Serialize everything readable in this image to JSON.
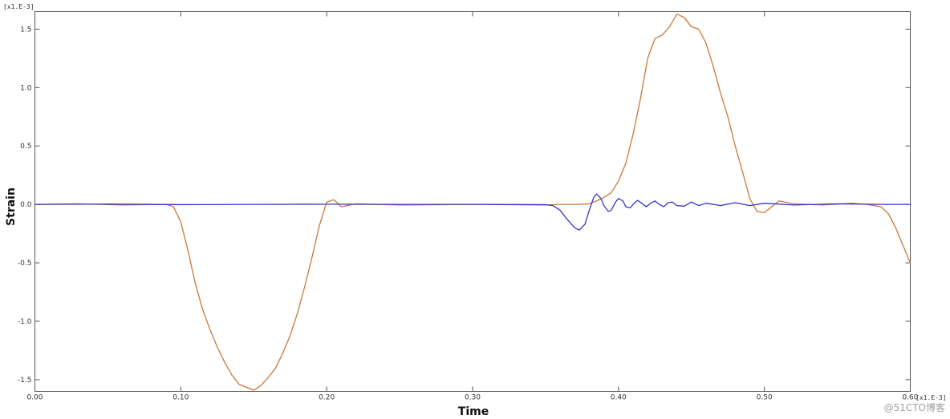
{
  "chart_data": {
    "type": "line",
    "xlabel": "Time",
    "ylabel": "Strain",
    "x_multiplier": "[x1.E-3]",
    "y_multiplier": "[x1.E-3]",
    "xlim": [
      0.0,
      0.6
    ],
    "ylim": [
      -1.6,
      1.65
    ],
    "x_ticks": [
      "0.00",
      "0.10",
      "0.20",
      "0.30",
      "0.40",
      "0.50",
      "0.60"
    ],
    "y_ticks": [
      "-1.5",
      "-1.0",
      "-0.5",
      "0.0",
      "0.5",
      "1.0",
      "1.5"
    ],
    "grid": false,
    "legend": "none",
    "series": [
      {
        "color": "#c8783a",
        "points": [
          [
            0.0,
            0.0
          ],
          [
            0.03,
            0.005
          ],
          [
            0.06,
            -0.005
          ],
          [
            0.09,
            0.0
          ],
          [
            0.095,
            -0.02
          ],
          [
            0.1,
            -0.15
          ],
          [
            0.105,
            -0.4
          ],
          [
            0.11,
            -0.68
          ],
          [
            0.115,
            -0.9
          ],
          [
            0.12,
            -1.07
          ],
          [
            0.125,
            -1.22
          ],
          [
            0.13,
            -1.35
          ],
          [
            0.135,
            -1.46
          ],
          [
            0.14,
            -1.54
          ],
          [
            0.145,
            -1.565
          ],
          [
            0.15,
            -1.59
          ],
          [
            0.155,
            -1.55
          ],
          [
            0.16,
            -1.48
          ],
          [
            0.165,
            -1.4
          ],
          [
            0.17,
            -1.27
          ],
          [
            0.175,
            -1.12
          ],
          [
            0.18,
            -0.93
          ],
          [
            0.185,
            -0.7
          ],
          [
            0.19,
            -0.45
          ],
          [
            0.195,
            -0.18
          ],
          [
            0.2,
            0.02
          ],
          [
            0.205,
            0.04
          ],
          [
            0.21,
            -0.02
          ],
          [
            0.22,
            0.005
          ],
          [
            0.25,
            -0.005
          ],
          [
            0.3,
            0.0
          ],
          [
            0.35,
            -0.005
          ],
          [
            0.36,
            0.0
          ],
          [
            0.37,
            0.0
          ],
          [
            0.38,
            0.005
          ],
          [
            0.385,
            0.03
          ],
          [
            0.39,
            0.06
          ],
          [
            0.395,
            0.1
          ],
          [
            0.4,
            0.2
          ],
          [
            0.405,
            0.35
          ],
          [
            0.41,
            0.6
          ],
          [
            0.415,
            0.9
          ],
          [
            0.42,
            1.25
          ],
          [
            0.425,
            1.42
          ],
          [
            0.43,
            1.45
          ],
          [
            0.435,
            1.52
          ],
          [
            0.44,
            1.63
          ],
          [
            0.445,
            1.6
          ],
          [
            0.45,
            1.52
          ],
          [
            0.455,
            1.5
          ],
          [
            0.46,
            1.38
          ],
          [
            0.465,
            1.18
          ],
          [
            0.47,
            0.95
          ],
          [
            0.475,
            0.75
          ],
          [
            0.48,
            0.5
          ],
          [
            0.485,
            0.28
          ],
          [
            0.49,
            0.05
          ],
          [
            0.495,
            -0.06
          ],
          [
            0.5,
            -0.07
          ],
          [
            0.505,
            -0.02
          ],
          [
            0.51,
            0.03
          ],
          [
            0.52,
            0.005
          ],
          [
            0.54,
            -0.005
          ],
          [
            0.56,
            0.01
          ],
          [
            0.57,
            0.0
          ],
          [
            0.58,
            -0.02
          ],
          [
            0.585,
            -0.08
          ],
          [
            0.59,
            -0.2
          ],
          [
            0.595,
            -0.35
          ],
          [
            0.6,
            -0.5
          ]
        ]
      },
      {
        "color": "#3535c8",
        "points": [
          [
            0.0,
            0.0
          ],
          [
            0.05,
            0.003
          ],
          [
            0.1,
            -0.002
          ],
          [
            0.15,
            0.0
          ],
          [
            0.2,
            0.002
          ],
          [
            0.25,
            0.0
          ],
          [
            0.3,
            0.0
          ],
          [
            0.35,
            -0.002
          ],
          [
            0.355,
            -0.01
          ],
          [
            0.36,
            -0.05
          ],
          [
            0.365,
            -0.13
          ],
          [
            0.37,
            -0.2
          ],
          [
            0.373,
            -0.22
          ],
          [
            0.377,
            -0.17
          ],
          [
            0.38,
            -0.05
          ],
          [
            0.383,
            0.06
          ],
          [
            0.385,
            0.09
          ],
          [
            0.388,
            0.05
          ],
          [
            0.39,
            -0.01
          ],
          [
            0.393,
            -0.06
          ],
          [
            0.395,
            -0.05
          ],
          [
            0.398,
            0.02
          ],
          [
            0.4,
            0.05
          ],
          [
            0.403,
            0.03
          ],
          [
            0.405,
            -0.02
          ],
          [
            0.408,
            -0.03
          ],
          [
            0.41,
            0.0
          ],
          [
            0.413,
            0.035
          ],
          [
            0.416,
            0.01
          ],
          [
            0.419,
            -0.02
          ],
          [
            0.422,
            0.01
          ],
          [
            0.425,
            0.03
          ],
          [
            0.428,
            0.0
          ],
          [
            0.431,
            -0.02
          ],
          [
            0.434,
            0.015
          ],
          [
            0.437,
            0.02
          ],
          [
            0.44,
            -0.01
          ],
          [
            0.445,
            -0.015
          ],
          [
            0.45,
            0.02
          ],
          [
            0.455,
            -0.01
          ],
          [
            0.46,
            0.01
          ],
          [
            0.47,
            -0.01
          ],
          [
            0.48,
            0.015
          ],
          [
            0.49,
            -0.01
          ],
          [
            0.5,
            0.01
          ],
          [
            0.52,
            -0.005
          ],
          [
            0.55,
            0.005
          ],
          [
            0.58,
            0.0
          ],
          [
            0.6,
            0.0
          ]
        ]
      }
    ]
  },
  "watermark": "@51CTO博客"
}
